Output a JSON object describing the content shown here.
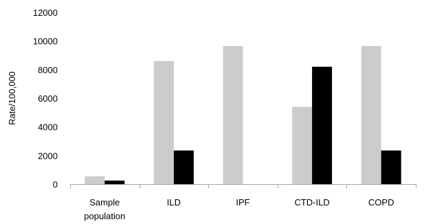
{
  "chart_data": {
    "type": "bar",
    "title": "",
    "xlabel": "",
    "ylabel": "Rate/100,000",
    "ylim": [
      0,
      12000
    ],
    "yticks": [
      0,
      2000,
      4000,
      6000,
      8000,
      10000,
      12000
    ],
    "yticklabels": [
      "0",
      "2000",
      "4000",
      "6000",
      "8000",
      "10000",
      "12000"
    ],
    "grid": false,
    "legend": "none",
    "categories": [
      [
        "Sample",
        "population"
      ],
      [
        "ILD"
      ],
      [
        "IPF"
      ],
      [
        "CTD-ILD"
      ],
      [
        "COPD"
      ]
    ],
    "series": [
      {
        "color": "#cccccc",
        "values": [
          550,
          8600,
          9650,
          5400,
          9650
        ]
      },
      {
        "color": "#000000",
        "values": [
          250,
          2350,
          0,
          8200,
          2350
        ]
      }
    ]
  }
}
